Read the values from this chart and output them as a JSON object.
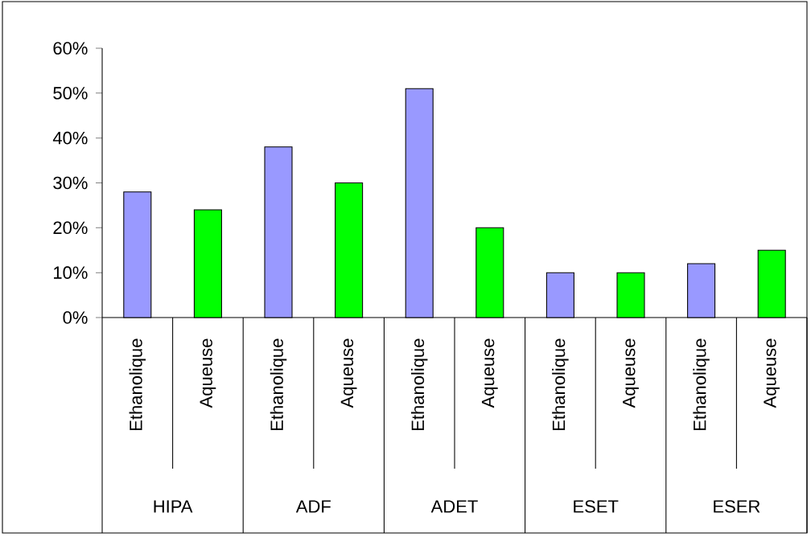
{
  "chart_data": {
    "type": "bar",
    "categories": [
      "Ethanolique",
      "Aqueuse",
      "Ethanolique",
      "Aqueuse",
      "Ethanolique",
      "Aqueuse",
      "Ethanolique",
      "Aqueuse",
      "Ethanolique",
      "Aqueuse"
    ],
    "values": [
      28,
      24,
      38,
      30,
      51,
      20,
      10,
      10,
      12,
      15
    ],
    "colors": [
      "#9999ff",
      "#00ff00",
      "#9999ff",
      "#00ff00",
      "#9999ff",
      "#00ff00",
      "#9999ff",
      "#00ff00",
      "#9999ff",
      "#00ff00"
    ],
    "ylim": [
      0,
      60
    ],
    "yticks": [
      {
        "value": 0,
        "label": "0%"
      },
      {
        "value": 10,
        "label": "10%"
      },
      {
        "value": 20,
        "label": "20%"
      },
      {
        "value": 30,
        "label": "30%"
      },
      {
        "value": 40,
        "label": "40%"
      },
      {
        "value": 50,
        "label": "50%"
      },
      {
        "value": 60,
        "label": "60%"
      }
    ],
    "annotations": [
      "HIPA",
      "ADF",
      "ADET",
      "ESET",
      "ESER"
    ]
  }
}
